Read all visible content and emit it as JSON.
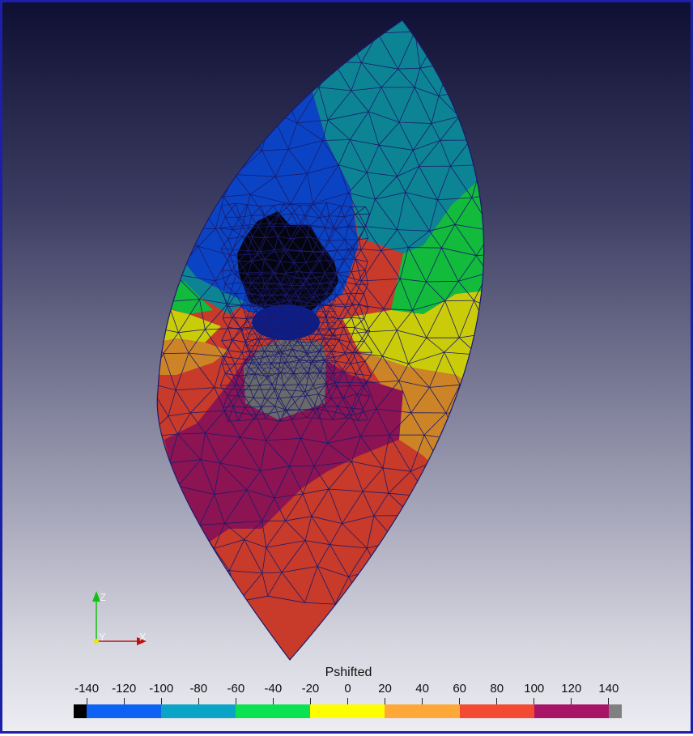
{
  "scalar_bar": {
    "title": "Pshifted",
    "ticks": [
      "-140",
      "-120",
      "-100",
      "-80",
      "-60",
      "-40",
      "-20",
      "0",
      "20",
      "40",
      "60",
      "80",
      "100",
      "120",
      "140"
    ],
    "range": [
      -140,
      140
    ],
    "bands": [
      {
        "from": -147,
        "to": -140,
        "color": "#000000"
      },
      {
        "from": -140,
        "to": -100,
        "color": "#0d62f4"
      },
      {
        "from": -100,
        "to": -60,
        "color": "#0aa4c6"
      },
      {
        "from": -60,
        "to": -20,
        "color": "#0ae251"
      },
      {
        "from": -20,
        "to": 20,
        "color": "#fefe00"
      },
      {
        "from": 20,
        "to": 60,
        "color": "#fea937"
      },
      {
        "from": 60,
        "to": 100,
        "color": "#f44932"
      },
      {
        "from": 100,
        "to": 140,
        "color": "#a81567"
      },
      {
        "from": 140,
        "to": 147,
        "color": "#808080"
      }
    ]
  },
  "orientation_axes": {
    "x_label": "X",
    "y_label": "Y",
    "z_label": "Z",
    "x_color": "#c01010",
    "y_color": "#e8e800",
    "z_color": "#10c010"
  },
  "mesh": {
    "edge_color": "#1a1a6e",
    "region_colors": {
      "black": "#050510",
      "blue": "#0a44c4",
      "teal": "#0d8494",
      "green": "#12bb3c",
      "yellow": "#cacc0a",
      "orange": "#cc8426",
      "red": "#c83a2a",
      "magenta": "#8c1452",
      "gray": "#6a6a6a"
    }
  },
  "background": {
    "top": "#0e0f33",
    "bottom": "#ececf2",
    "frame": "#1c20a8"
  }
}
